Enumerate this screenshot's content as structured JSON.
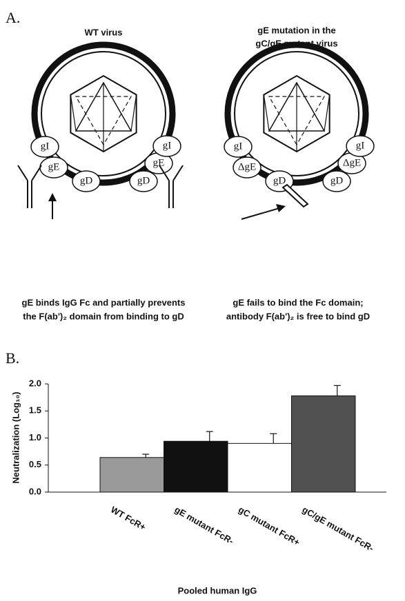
{
  "panel_a": {
    "label": "A.",
    "left": {
      "title": "WT virus",
      "proteins": [
        "gI",
        "gE",
        "gD",
        "gD",
        "gE",
        "gI"
      ],
      "caption": [
        "gE binds IgG Fc and partially prevents",
        "the F(ab')₂ domain from binding to gD"
      ]
    },
    "right": {
      "title": [
        "gE mutation in the",
        "gC/gE mutant virus"
      ],
      "proteins": [
        "gI",
        "ΔgE",
        "gD",
        "gD",
        "ΔgE",
        "gI"
      ],
      "caption": [
        "gE fails to bind the Fc domain;",
        "antibody F(ab')₂ is free to bind gD"
      ]
    }
  },
  "chart_data": {
    "type": "bar",
    "panel_label": "B.",
    "y_label": "Neutralization (Log₁₀)",
    "x_label": "Pooled human IgG",
    "categories": [
      "WT FcR+",
      "gE mutant FcR-",
      "gC mutant FcR+",
      "gC/gE mutant FcR-"
    ],
    "values": [
      0.64,
      0.94,
      0.9,
      1.78
    ],
    "errors": [
      0.06,
      0.18,
      0.18,
      0.19
    ],
    "colors": [
      "#9a9a9a",
      "#111111",
      "#ffffff",
      "#505050"
    ],
    "ylim": [
      0,
      2
    ],
    "yticks": [
      {
        "value": 0,
        "label": "0.0"
      },
      {
        "value": 0.5,
        "label": "0.5"
      },
      {
        "value": 1,
        "label": "1.0"
      },
      {
        "value": 1.5,
        "label": "1.5"
      },
      {
        "value": 2,
        "label": "2.0"
      }
    ]
  }
}
